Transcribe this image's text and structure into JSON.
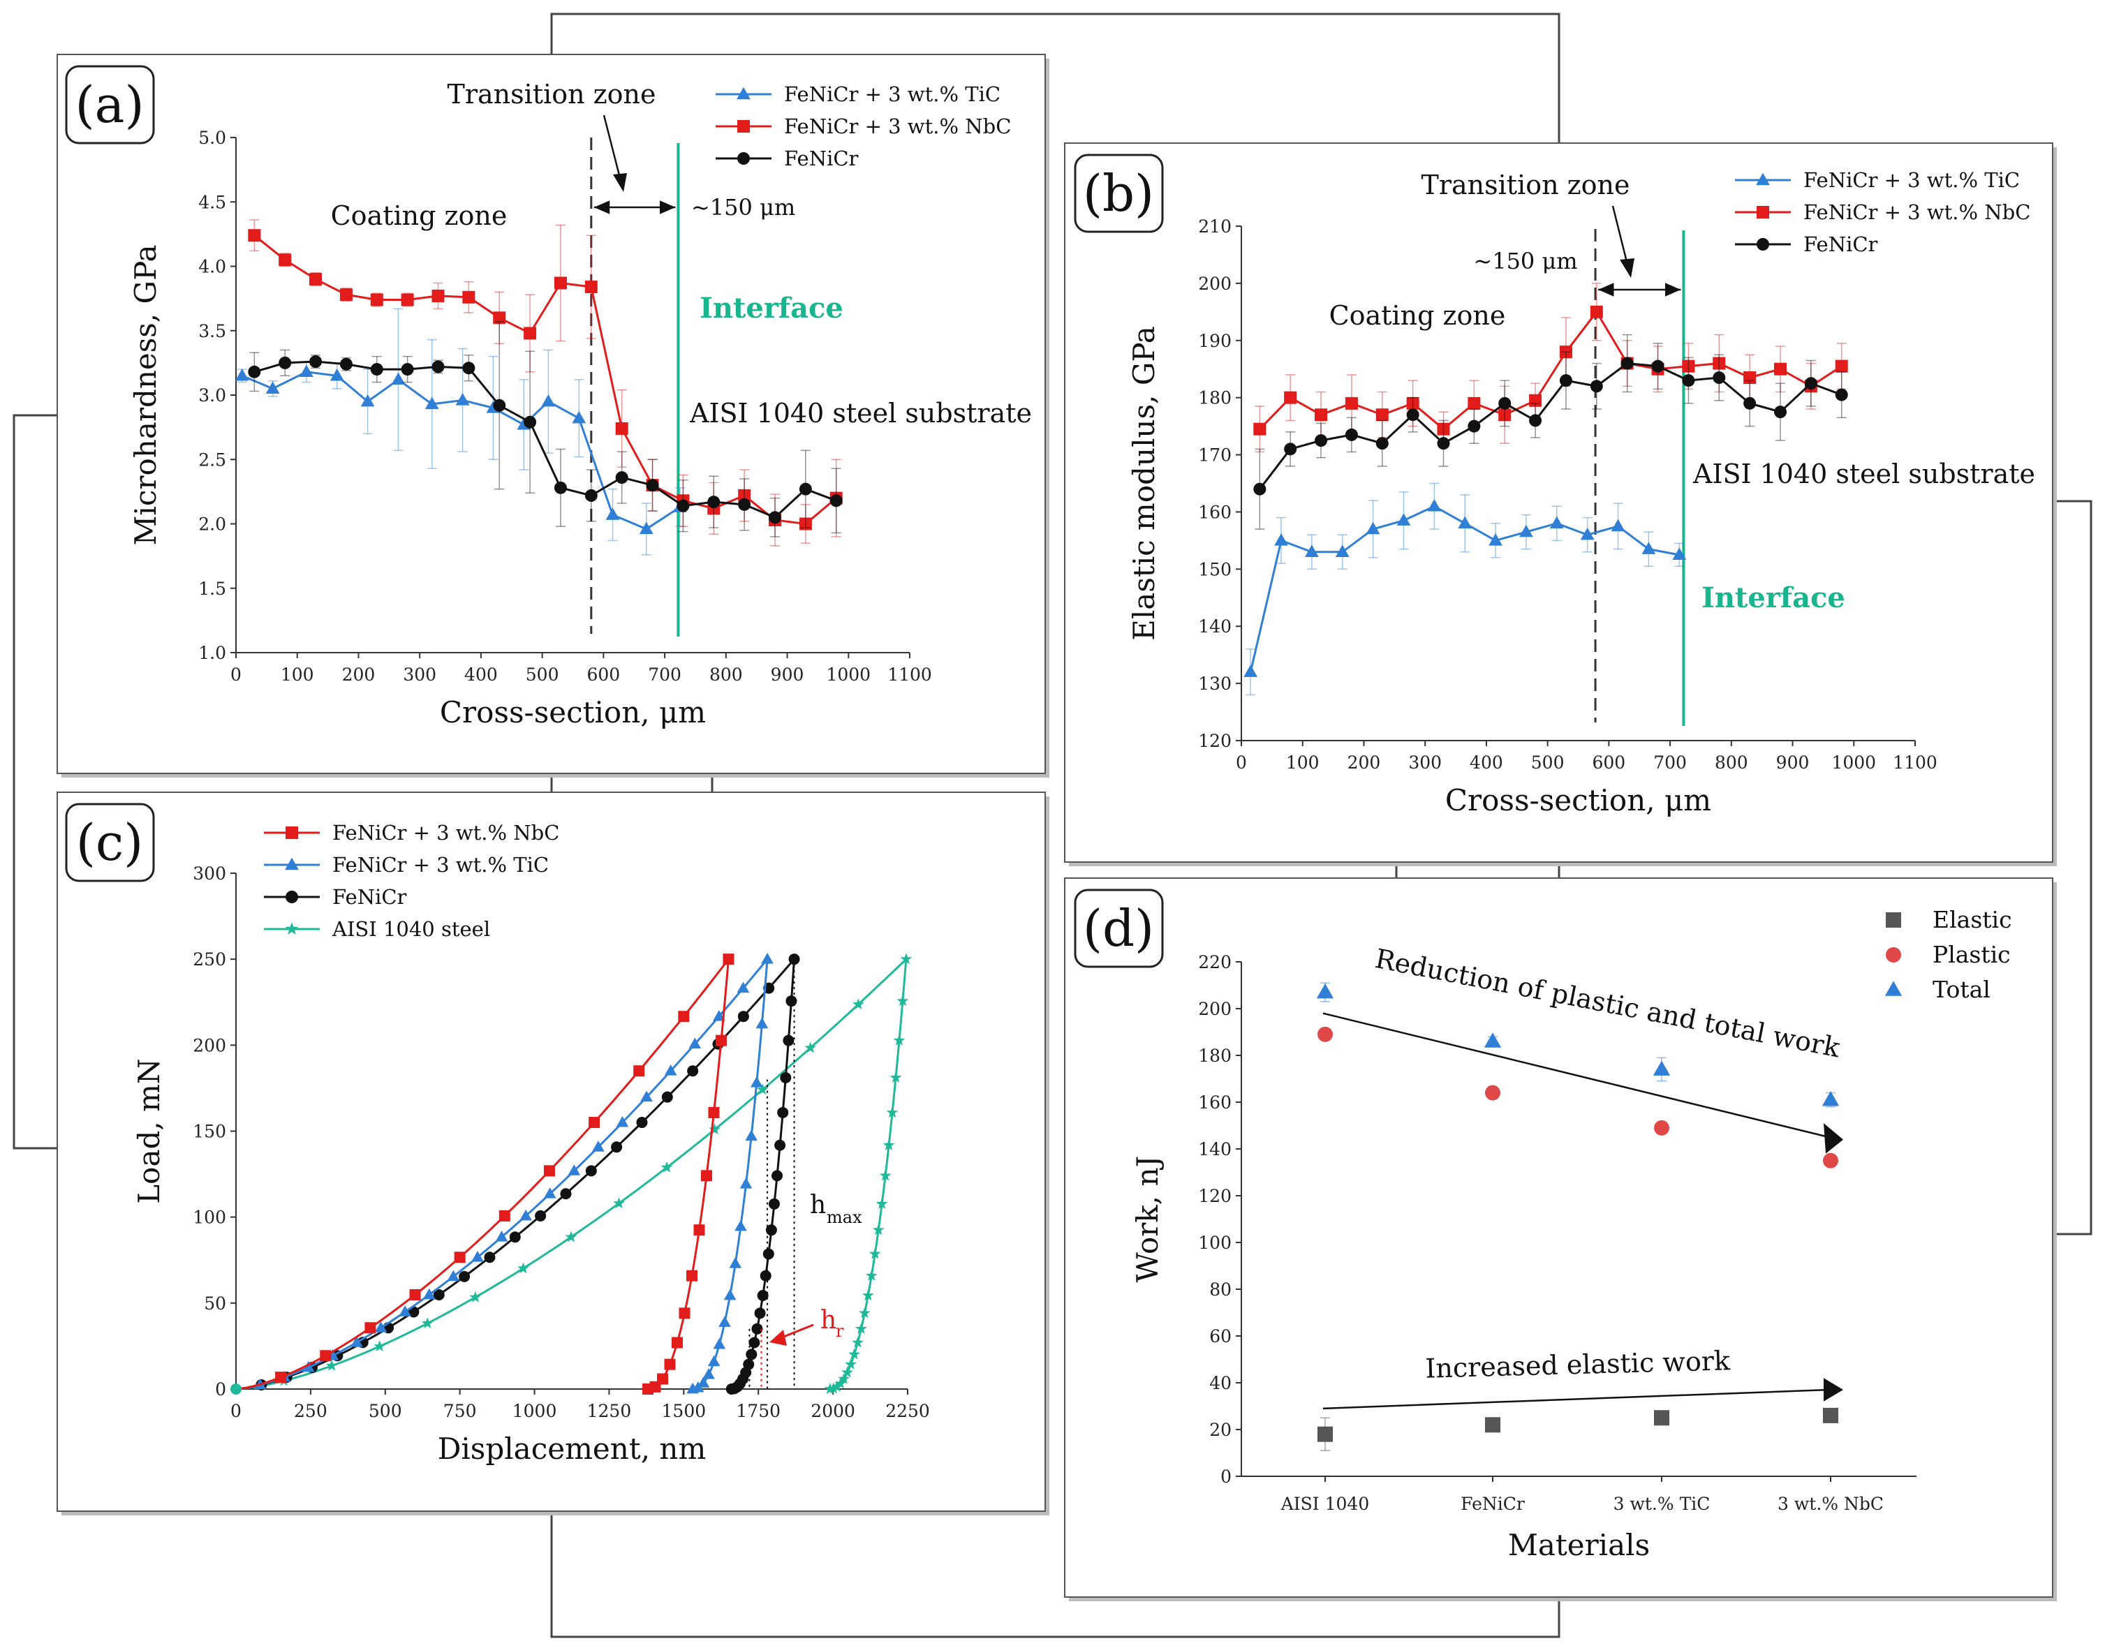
{
  "colors": {
    "tic": "#2f7fd6",
    "nbc": "#e21b1b",
    "fenicr": "#111111",
    "steel": "#1fb99a",
    "interface": "#18b58e",
    "elastic": "#555555",
    "plastic": "#e04848",
    "total": "#2f7fd6"
  },
  "chart_data": [
    {
      "panel": "(a)",
      "type": "line",
      "xlabel": "Cross-section, μm",
      "ylabel": "Microhardness, GPa",
      "xlim": [
        0,
        1100
      ],
      "ylim": [
        1.0,
        5.0
      ],
      "xticks": [
        "0",
        "100",
        "200",
        "300",
        "400",
        "500",
        "600",
        "700",
        "800",
        "900",
        "1000",
        "1100"
      ],
      "yticks": [
        "1.0",
        "1.5",
        "2.0",
        "2.5",
        "3.0",
        "3.5",
        "4.0",
        "4.5",
        "5.0"
      ],
      "legend": [
        "FeNiCr + 3 wt.% TiC",
        "FeNiCr + 3 wt.% NbC",
        "FeNiCr"
      ],
      "series": [
        {
          "name": "FeNiCr + 3 wt.% TiC",
          "marker": "triangle",
          "x": [
            10,
            60,
            115,
            165,
            215,
            265,
            320,
            370,
            420,
            470,
            510,
            560,
            615,
            670,
            725
          ],
          "y": [
            3.15,
            3.05,
            3.18,
            3.15,
            2.95,
            3.12,
            2.93,
            2.96,
            2.9,
            2.77,
            2.95,
            2.82,
            2.07,
            1.96,
            2.13
          ],
          "err": [
            0.05,
            0.06,
            0.08,
            0.1,
            0.25,
            0.55,
            0.5,
            0.4,
            0.4,
            0.35,
            0.4,
            0.3,
            0.2,
            0.2,
            0.15
          ]
        },
        {
          "name": "FeNiCr + 3 wt.% NbC",
          "marker": "square",
          "x": [
            30,
            80,
            130,
            180,
            230,
            280,
            330,
            380,
            430,
            480,
            530,
            580,
            630,
            680,
            730,
            780,
            830,
            880,
            930,
            980
          ],
          "y": [
            4.24,
            4.05,
            3.9,
            3.78,
            3.74,
            3.74,
            3.77,
            3.76,
            3.6,
            3.48,
            3.87,
            3.84,
            2.74,
            2.3,
            2.18,
            2.12,
            2.22,
            2.03,
            2.0,
            2.2
          ],
          "err": [
            0.12,
            0.05,
            0.05,
            0.05,
            0.05,
            0.05,
            0.1,
            0.12,
            0.2,
            0.3,
            0.45,
            0.4,
            0.3,
            0.2,
            0.2,
            0.2,
            0.2,
            0.2,
            0.15,
            0.3
          ]
        },
        {
          "name": "FeNiCr",
          "marker": "circle",
          "x": [
            30,
            80,
            130,
            180,
            230,
            280,
            330,
            380,
            430,
            480,
            530,
            580,
            630,
            680,
            730,
            780,
            830,
            880,
            930,
            980
          ],
          "y": [
            3.18,
            3.25,
            3.26,
            3.24,
            3.2,
            3.2,
            3.22,
            3.21,
            2.92,
            2.79,
            2.28,
            2.22,
            2.36,
            2.3,
            2.14,
            2.17,
            2.15,
            2.05,
            2.27,
            2.18
          ],
          "err": [
            0.15,
            0.1,
            0.05,
            0.05,
            0.1,
            0.1,
            0.05,
            0.1,
            0.65,
            0.55,
            0.3,
            0.2,
            0.2,
            0.2,
            0.2,
            0.2,
            0.2,
            0.15,
            0.3,
            0.25
          ]
        }
      ],
      "annotations": {
        "transition": "Transition zone",
        "width": "~150 μm",
        "coating": "Coating zone",
        "interface": "Interface",
        "substrate": "AISI 1040 steel substrate"
      },
      "markers_x": {
        "dashed": 580,
        "interface": 722
      }
    },
    {
      "panel": "(b)",
      "type": "line",
      "xlabel": "Cross-section, μm",
      "ylabel": "Elastic modulus, GPa",
      "xlim": [
        0,
        1100
      ],
      "ylim": [
        120,
        210
      ],
      "xticks": [
        "0",
        "100",
        "200",
        "300",
        "400",
        "500",
        "600",
        "700",
        "800",
        "900",
        "1000",
        "1100"
      ],
      "yticks": [
        "120",
        "130",
        "140",
        "150",
        "160",
        "170",
        "180",
        "190",
        "200",
        "210"
      ],
      "legend": [
        "FeNiCr + 3 wt.% TiC",
        "FeNiCr + 3 wt.% NbC",
        "FeNiCr"
      ],
      "series": [
        {
          "name": "FeNiCr + 3 wt.% TiC",
          "marker": "triangle",
          "x": [
            15,
            65,
            115,
            165,
            215,
            265,
            315,
            365,
            415,
            465,
            515,
            565,
            615,
            665,
            715
          ],
          "y": [
            132,
            155,
            153,
            153,
            157,
            158.5,
            161,
            158,
            155,
            156.5,
            158,
            156,
            157.5,
            153.5,
            152.5
          ],
          "err": [
            4,
            4,
            3,
            3,
            5,
            5,
            4,
            5,
            3,
            3,
            3,
            3,
            4,
            3,
            2
          ]
        },
        {
          "name": "FeNiCr + 3 wt.% NbC",
          "marker": "square",
          "x": [
            30,
            80,
            130,
            180,
            230,
            280,
            330,
            380,
            430,
            480,
            530,
            580,
            630,
            680,
            730,
            780,
            830,
            880,
            930,
            980
          ],
          "y": [
            174.5,
            180,
            177,
            179,
            177,
            179,
            174.5,
            179,
            177,
            179.5,
            188,
            195,
            186,
            185,
            185.5,
            186,
            183.5,
            185,
            182,
            185.5
          ],
          "err": [
            4,
            4,
            4,
            5,
            4,
            4,
            3,
            4,
            5,
            3,
            6,
            5,
            4,
            4,
            4,
            5,
            4,
            4,
            4,
            4
          ]
        },
        {
          "name": "FeNiCr",
          "marker": "circle",
          "x": [
            30,
            80,
            130,
            180,
            230,
            280,
            330,
            380,
            430,
            480,
            530,
            580,
            630,
            680,
            730,
            780,
            830,
            880,
            930,
            980
          ],
          "y": [
            164,
            171,
            172.5,
            173.5,
            172,
            177,
            172,
            175,
            179,
            176,
            183,
            182,
            186,
            185.5,
            183,
            183.5,
            179,
            177.5,
            182.5,
            180.5
          ],
          "err": [
            7,
            3,
            3,
            3,
            4,
            3,
            4,
            3,
            4,
            3,
            5,
            4,
            5,
            4,
            4,
            4,
            4,
            5,
            4,
            4
          ]
        }
      ],
      "annotations": {
        "transition": "Transition zone",
        "width": "~150 μm",
        "coating": "Coating zone",
        "interface": "Interface",
        "substrate": "AISI 1040 steel substrate"
      },
      "markers_x": {
        "dashed": 578,
        "interface": 722
      }
    },
    {
      "panel": "(c)",
      "type": "line",
      "xlabel": "Displacement, nm",
      "ylabel": "Load, mN",
      "xlim": [
        0,
        2250
      ],
      "ylim": [
        0,
        300
      ],
      "xticks": [
        "0",
        "250",
        "500",
        "750",
        "1000",
        "1250",
        "1500",
        "1750",
        "2000",
        "2250"
      ],
      "yticks": [
        "0",
        "50",
        "100",
        "150",
        "200",
        "250",
        "300"
      ],
      "legend": [
        "FeNiCr + 3 wt.% NbC",
        "FeNiCr + 3 wt.% TiC",
        "FeNiCr",
        "AISI 1040 steel"
      ],
      "series": [
        {
          "name": "FeNiCr + 3 wt.% NbC",
          "marker": "square",
          "hmax": 1650,
          "hr": 1380,
          "n_load": 11,
          "n_unload": 11
        },
        {
          "name": "FeNiCr + 3 wt.% TiC",
          "marker": "triangle",
          "hmax": 1780,
          "hr": 1530,
          "n_load": 22,
          "n_unload": 14
        },
        {
          "name": "FeNiCr",
          "marker": "circle",
          "hmax": 1870,
          "hr": 1660,
          "n_load": 22,
          "n_unload": 22
        },
        {
          "name": "AISI 1040 steel",
          "marker": "star",
          "hmax": 2245,
          "hr": 1990,
          "n_load": 14,
          "n_unload": 22
        }
      ],
      "annotations": {
        "hmax": "h",
        "hmax_sub": "max",
        "hr": "h",
        "hr_sub": "r"
      }
    },
    {
      "panel": "(d)",
      "type": "scatter",
      "xlabel": "Materials",
      "ylabel": "Work, nJ",
      "ylim": [
        0,
        220
      ],
      "categories": [
        "AISI 1040",
        "FeNiCr",
        "3 wt.% TiC",
        "3 wt.% NbC"
      ],
      "yticks": [
        "0",
        "20",
        "40",
        "60",
        "80",
        "100",
        "120",
        "140",
        "160",
        "180",
        "200",
        "220"
      ],
      "legend": [
        "Elastic",
        "Plastic",
        "Total"
      ],
      "series": [
        {
          "name": "Elastic",
          "marker": "square",
          "values": [
            18,
            22,
            25,
            26
          ],
          "err": [
            7,
            2,
            2,
            3
          ]
        },
        {
          "name": "Plastic",
          "marker": "circle",
          "values": [
            189,
            164,
            149,
            135
          ],
          "err": [
            0,
            0,
            0,
            0
          ]
        },
        {
          "name": "Total",
          "marker": "triangle",
          "values": [
            207,
            186,
            174,
            161
          ],
          "err": [
            4,
            2,
            5,
            3
          ]
        }
      ],
      "annotations": {
        "reduction": "Reduction of plastic and total work",
        "increased": "Increased elastic work"
      }
    }
  ]
}
